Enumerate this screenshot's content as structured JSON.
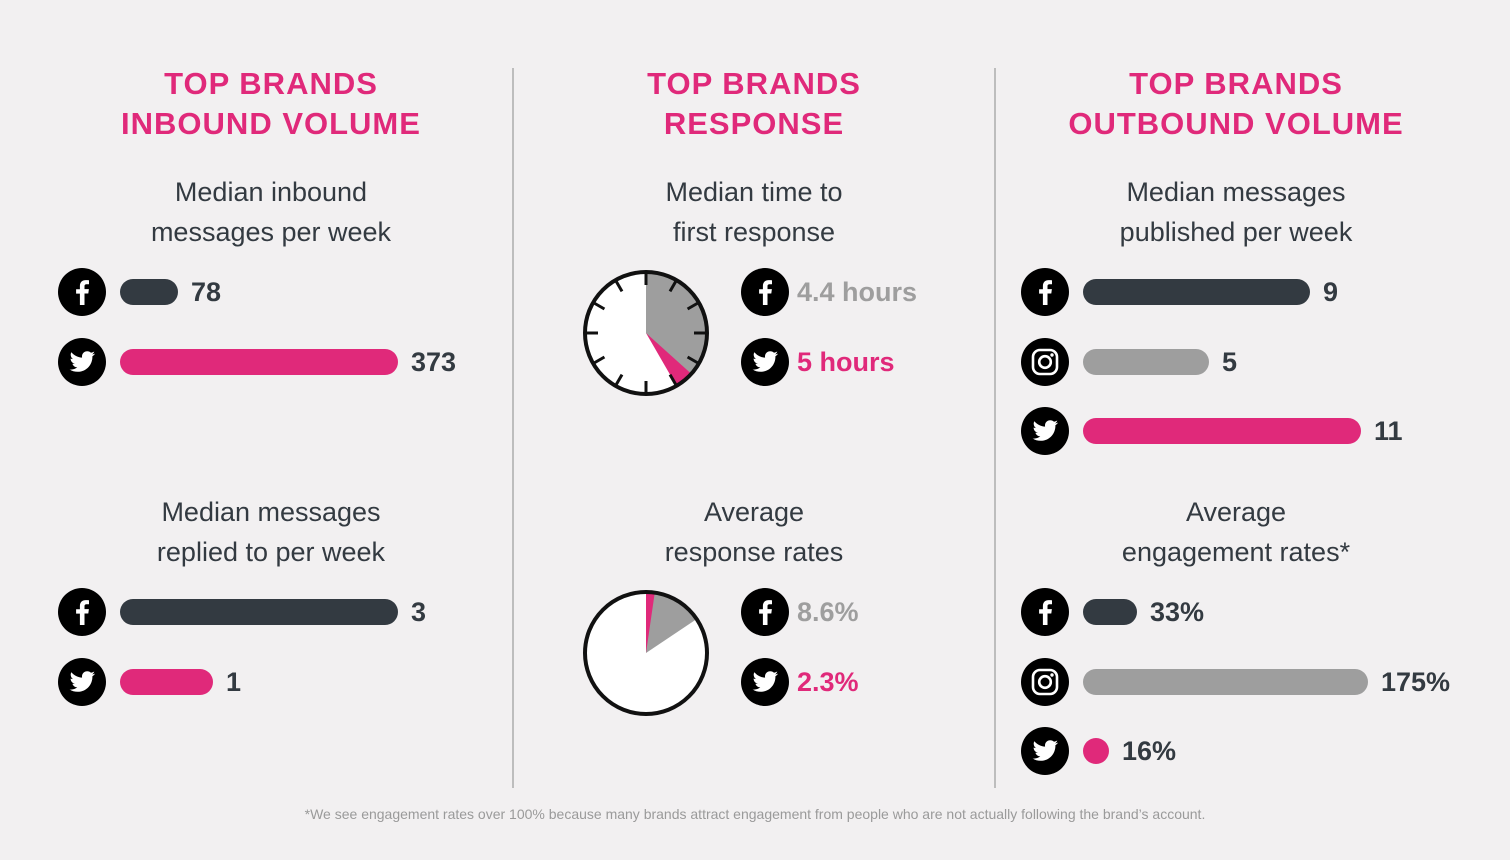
{
  "colors": {
    "background": "#f2f0f1",
    "accent_pink": "#e0297a",
    "facebook_dark": "#333a41",
    "instagram_gray": "#9e9e9e",
    "text_dark": "#333a41",
    "footnote_gray": "#9a9a9a"
  },
  "columns": [
    {
      "title_line1": "TOP BRANDS",
      "title_line2": "INBOUND VOLUME",
      "section1": {
        "line1": "Median inbound",
        "line2": "messages per week"
      },
      "section2": {
        "line1": "Median messages",
        "line2": "replied to per week"
      }
    },
    {
      "title_line1": "TOP BRANDS",
      "title_line2": "RESPONSE",
      "section1": {
        "line1": "Median time to",
        "line2": "first response"
      },
      "section2": {
        "line1": "Average",
        "line2": "response rates"
      }
    },
    {
      "title_line1": "TOP BRANDS",
      "title_line2": "OUTBOUND VOLUME",
      "section1": {
        "line1": "Median messages",
        "line2": "published per week"
      },
      "section2": {
        "line1": "Average",
        "line2": "engagement rates*"
      }
    }
  ],
  "chart_data": [
    {
      "type": "bar",
      "categories": [
        "facebook-icon",
        "twitter-icon"
      ],
      "values": [
        78,
        373
      ],
      "labels": [
        "78",
        "373"
      ],
      "colors": [
        "#333a41",
        "#e0297a"
      ]
    },
    {
      "type": "bar",
      "categories": [
        "facebook-icon",
        "twitter-icon"
      ],
      "values": [
        3,
        1
      ],
      "labels": [
        "3",
        "1"
      ],
      "colors": [
        "#333a41",
        "#e0297a"
      ]
    },
    {
      "type": "pie",
      "categories": [
        "facebook-icon",
        "twitter-icon"
      ],
      "values": [
        4.4,
        5
      ],
      "labels": [
        "4.4 hours",
        "5 hours"
      ],
      "colors": [
        "#9e9e9e",
        "#e0297a"
      ],
      "units": "hours on a 12-hour clock face"
    },
    {
      "type": "pie",
      "categories": [
        "facebook-icon",
        "twitter-icon"
      ],
      "values": [
        8.6,
        2.3
      ],
      "labels": [
        "8.6%",
        "2.3%"
      ],
      "colors": [
        "#9e9e9e",
        "#e0297a"
      ],
      "units": "percent"
    },
    {
      "type": "bar",
      "categories": [
        "facebook-icon",
        "instagram-icon",
        "twitter-icon"
      ],
      "values": [
        9,
        5,
        11
      ],
      "labels": [
        "9",
        "5",
        "11"
      ],
      "colors": [
        "#333a41",
        "#9e9e9e",
        "#e0297a"
      ]
    },
    {
      "type": "bar",
      "categories": [
        "facebook-icon",
        "instagram-icon",
        "twitter-icon"
      ],
      "values": [
        33,
        175,
        16
      ],
      "labels": [
        "33%",
        "175%",
        "16%"
      ],
      "colors": [
        "#333a41",
        "#9e9e9e",
        "#e0297a"
      ]
    }
  ],
  "footnote": "*We see engagement rates over 100% because many brands attract engagement from people who are not actually following the brand’s account."
}
